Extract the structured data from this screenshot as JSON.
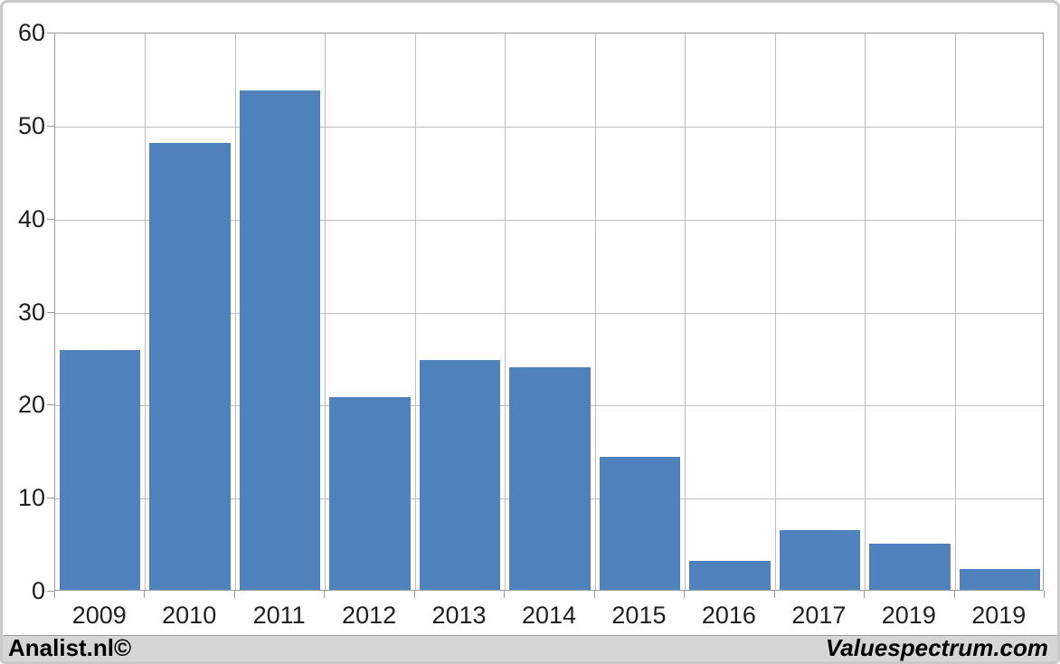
{
  "chart_data": {
    "type": "bar",
    "categories": [
      "2009",
      "2010",
      "2011",
      "2012",
      "2013",
      "2014",
      "2015",
      "2016",
      "2017",
      "2019",
      "2019"
    ],
    "values": [
      25.8,
      48.0,
      53.7,
      20.7,
      24.7,
      23.9,
      14.3,
      3.1,
      6.4,
      5.0,
      2.2
    ],
    "title": "",
    "xlabel": "",
    "ylabel": "",
    "ylim": [
      0,
      60
    ],
    "yticks": [
      0,
      10,
      20,
      30,
      40,
      50,
      60
    ],
    "grid": true,
    "legend": false,
    "bar_color": "#4f81bd",
    "gridline_color": "#bdbdbd",
    "axis_color": "#9b9b9b",
    "plot_background": "#ffffff"
  },
  "footer": {
    "left_text": "Analist.nl©",
    "right_text": "Valuespectrum.com",
    "background": "#d6d6d6"
  }
}
